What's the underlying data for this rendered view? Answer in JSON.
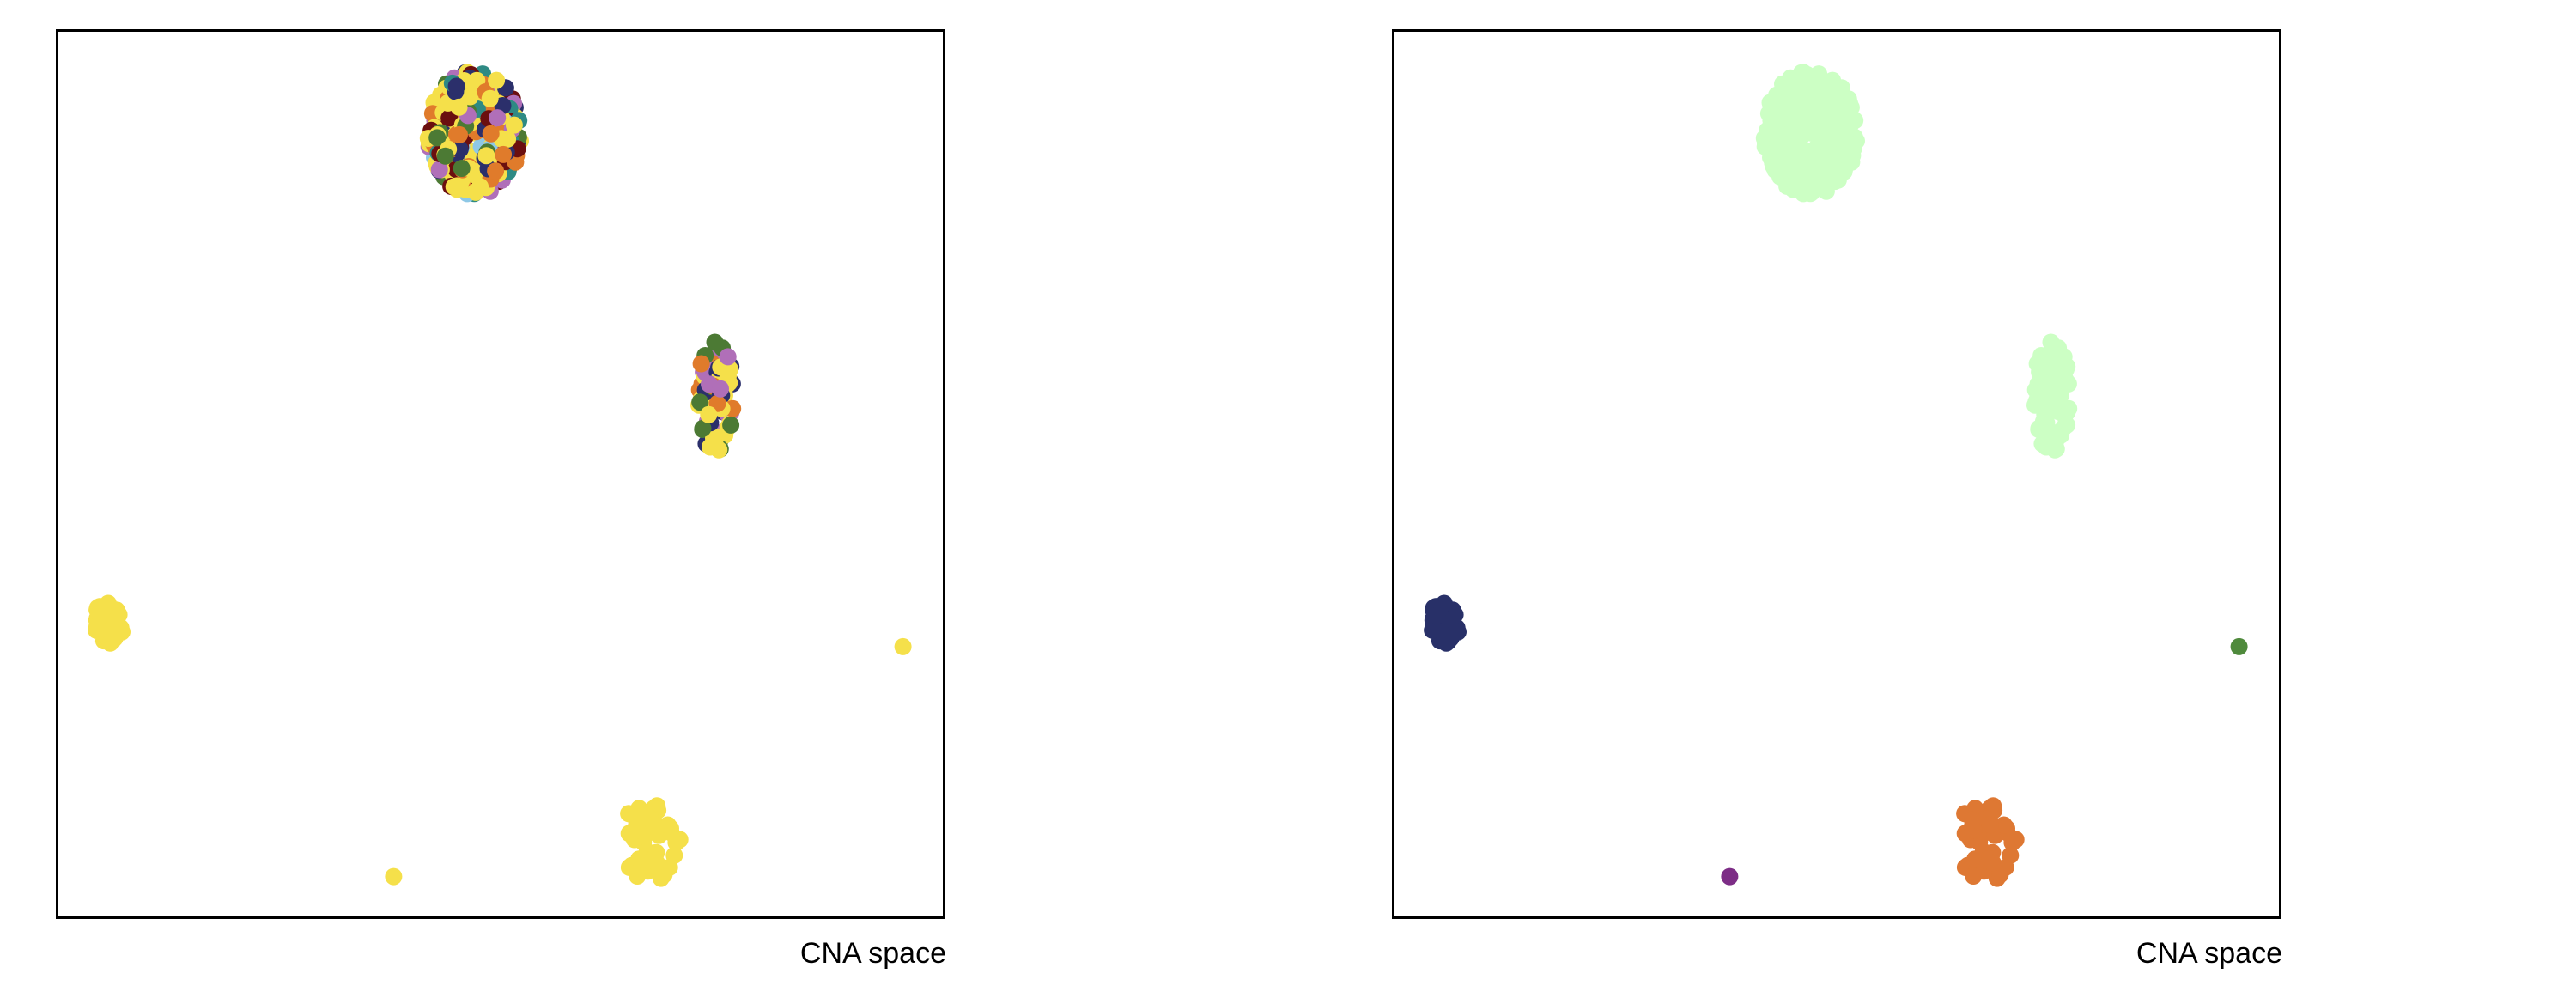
{
  "chart_data": [
    {
      "type": "scatter",
      "title": "",
      "xlabel": "CNA space",
      "ylabel": "",
      "xlim": [
        0,
        100
      ],
      "ylim": [
        0,
        100
      ],
      "grid": false,
      "legend": "none",
      "clusters": [
        {
          "cx": 47,
          "cy": 88.5,
          "rx": 5.3,
          "ry": 7.0,
          "n": 340,
          "colors": [
            "#f5e04a",
            "#2b2f6b",
            "#f5e04a",
            "#4c7a34",
            "#e07b2b",
            "#f5e04a",
            "#b06fb8",
            "#2e8a84",
            "#8ec8e6",
            "#6b0f0f",
            "#f5e04a"
          ],
          "seed": 11
        },
        {
          "cx": 74.3,
          "cy": 59.0,
          "rx": 2.0,
          "ry": 7.0,
          "n": 90,
          "colors": [
            "#f5e04a",
            "#4c7a34",
            "#2b2f6b",
            "#b06fb8",
            "#f5e04a",
            "#e07b2b"
          ],
          "seed": 23
        },
        {
          "cx": 5.5,
          "cy": 33.0,
          "rx": 1.8,
          "ry": 2.5,
          "n": 40,
          "colors": [
            "#f5e04a"
          ],
          "seed": 37
        },
        {
          "cx": 95.5,
          "cy": 30.5,
          "rx": 0.2,
          "ry": 0.2,
          "n": 1,
          "colors": [
            "#f5e04a"
          ],
          "seed": 41
        },
        {
          "cx": 67.0,
          "cy": 8.5,
          "rx": 3.8,
          "ry": 4.5,
          "n": 45,
          "colors": [
            "#f5e04a"
          ],
          "seed": 53
        },
        {
          "cx": 37.9,
          "cy": 4.5,
          "rx": 0.2,
          "ry": 0.2,
          "n": 1,
          "colors": [
            "#f5e04a"
          ],
          "seed": 59
        }
      ]
    },
    {
      "type": "scatter",
      "title": "",
      "xlabel": "CNA space",
      "ylabel": "",
      "xlim": [
        0,
        100
      ],
      "ylim": [
        0,
        100
      ],
      "grid": false,
      "legend": "none",
      "clusters": [
        {
          "cx": 47,
          "cy": 88.5,
          "rx": 5.3,
          "ry": 7.0,
          "n": 340,
          "colors": [
            "#ccffc4"
          ],
          "seed": 11
        },
        {
          "cx": 74.3,
          "cy": 59.0,
          "rx": 2.0,
          "ry": 7.0,
          "n": 90,
          "colors": [
            "#ccffc4"
          ],
          "seed": 23
        },
        {
          "cx": 5.5,
          "cy": 33.0,
          "rx": 1.8,
          "ry": 2.5,
          "n": 40,
          "colors": [
            "#283068"
          ],
          "seed": 37
        },
        {
          "cx": 95.5,
          "cy": 30.5,
          "rx": 0.2,
          "ry": 0.2,
          "n": 1,
          "colors": [
            "#4f8a3c"
          ],
          "seed": 41
        },
        {
          "cx": 67.0,
          "cy": 8.5,
          "rx": 3.8,
          "ry": 4.5,
          "n": 45,
          "colors": [
            "#de7833"
          ],
          "seed": 53
        },
        {
          "cx": 37.9,
          "cy": 4.5,
          "rx": 0.2,
          "ry": 0.2,
          "n": 1,
          "colors": [
            "#7d2d86"
          ],
          "seed": 59
        }
      ]
    }
  ]
}
